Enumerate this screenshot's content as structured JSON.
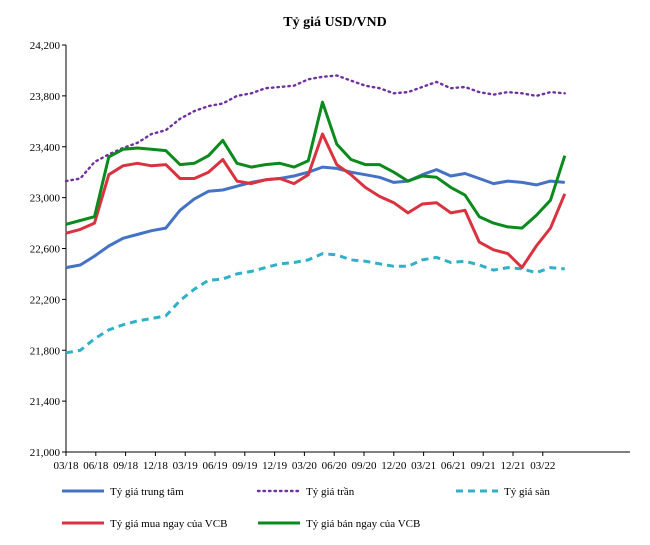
{
  "chart_data": {
    "type": "line",
    "title": "Tỷ giá USD/VND",
    "xlabel": "",
    "ylabel": "",
    "ylim": [
      21000,
      24200
    ],
    "yticks": [
      21000,
      21400,
      21800,
      22200,
      22600,
      23000,
      23400,
      23800,
      24200
    ],
    "ytick_labels": [
      "21,000",
      "21,400",
      "21,800",
      "22,200",
      "22,600",
      "23,000",
      "23,400",
      "23,800",
      "24,200"
    ],
    "xticks": [
      "03/18",
      "06/18",
      "09/18",
      "12/18",
      "03/19",
      "06/19",
      "09/19",
      "12/19",
      "03/20",
      "06/20",
      "09/20",
      "12/20",
      "03/21",
      "06/21",
      "09/21",
      "12/21",
      "03/22"
    ],
    "grid": false,
    "legend_position": "bottom",
    "series": [
      {
        "name": "Tỷ giá trung tâm",
        "color": "#4472C4",
        "style": "solid",
        "values": [
          22450,
          22470,
          22540,
          22620,
          22680,
          22710,
          22740,
          22760,
          22900,
          22990,
          23050,
          23060,
          23090,
          23120,
          23140,
          23150,
          23170,
          23200,
          23240,
          23230,
          23200,
          23180,
          23160,
          23120,
          23130,
          23180,
          23220,
          23170,
          23190,
          23150,
          23110,
          23130,
          23120,
          23100,
          23130,
          23120
        ]
      },
      {
        "name": "Tỷ giá trần",
        "color": "#7030A0",
        "style": "dotted",
        "values": [
          23130,
          23150,
          23280,
          23340,
          23390,
          23430,
          23500,
          23530,
          23620,
          23680,
          23720,
          23740,
          23800,
          23820,
          23860,
          23870,
          23880,
          23930,
          23950,
          23960,
          23920,
          23880,
          23860,
          23820,
          23830,
          23870,
          23910,
          23860,
          23870,
          23830,
          23810,
          23830,
          23820,
          23800,
          23830,
          23820
        ]
      },
      {
        "name": "Tỷ giá sàn",
        "color": "#31B0C9",
        "style": "dashed",
        "values": [
          21780,
          21800,
          21890,
          21960,
          22000,
          22030,
          22050,
          22070,
          22190,
          22280,
          22350,
          22360,
          22400,
          22420,
          22450,
          22480,
          22490,
          22510,
          22560,
          22550,
          22510,
          22500,
          22480,
          22460,
          22460,
          22510,
          22530,
          22490,
          22500,
          22470,
          22430,
          22450,
          22440,
          22410,
          22450,
          22440
        ]
      },
      {
        "name": "Tỷ giá mua ngay của VCB",
        "color": "#D9333F",
        "style": "solid",
        "values": [
          22720,
          22750,
          22800,
          23180,
          23250,
          23270,
          23250,
          23260,
          23150,
          23150,
          23200,
          23300,
          23130,
          23110,
          23140,
          23150,
          23110,
          23180,
          23500,
          23260,
          23180,
          23080,
          23010,
          22960,
          22880,
          22950,
          22960,
          22880,
          22900,
          22650,
          22590,
          22560,
          22450,
          22620,
          22760,
          23030
        ]
      },
      {
        "name": "Tỷ giá bán ngay của VCB",
        "color": "#0B8A1D",
        "style": "solid",
        "values": [
          22790,
          22820,
          22850,
          23320,
          23380,
          23390,
          23380,
          23370,
          23260,
          23270,
          23330,
          23450,
          23270,
          23240,
          23260,
          23270,
          23240,
          23290,
          23750,
          23420,
          23300,
          23260,
          23260,
          23200,
          23130,
          23170,
          23160,
          23080,
          23020,
          22850,
          22800,
          22770,
          22760,
          22860,
          22980,
          23330
        ]
      }
    ]
  }
}
